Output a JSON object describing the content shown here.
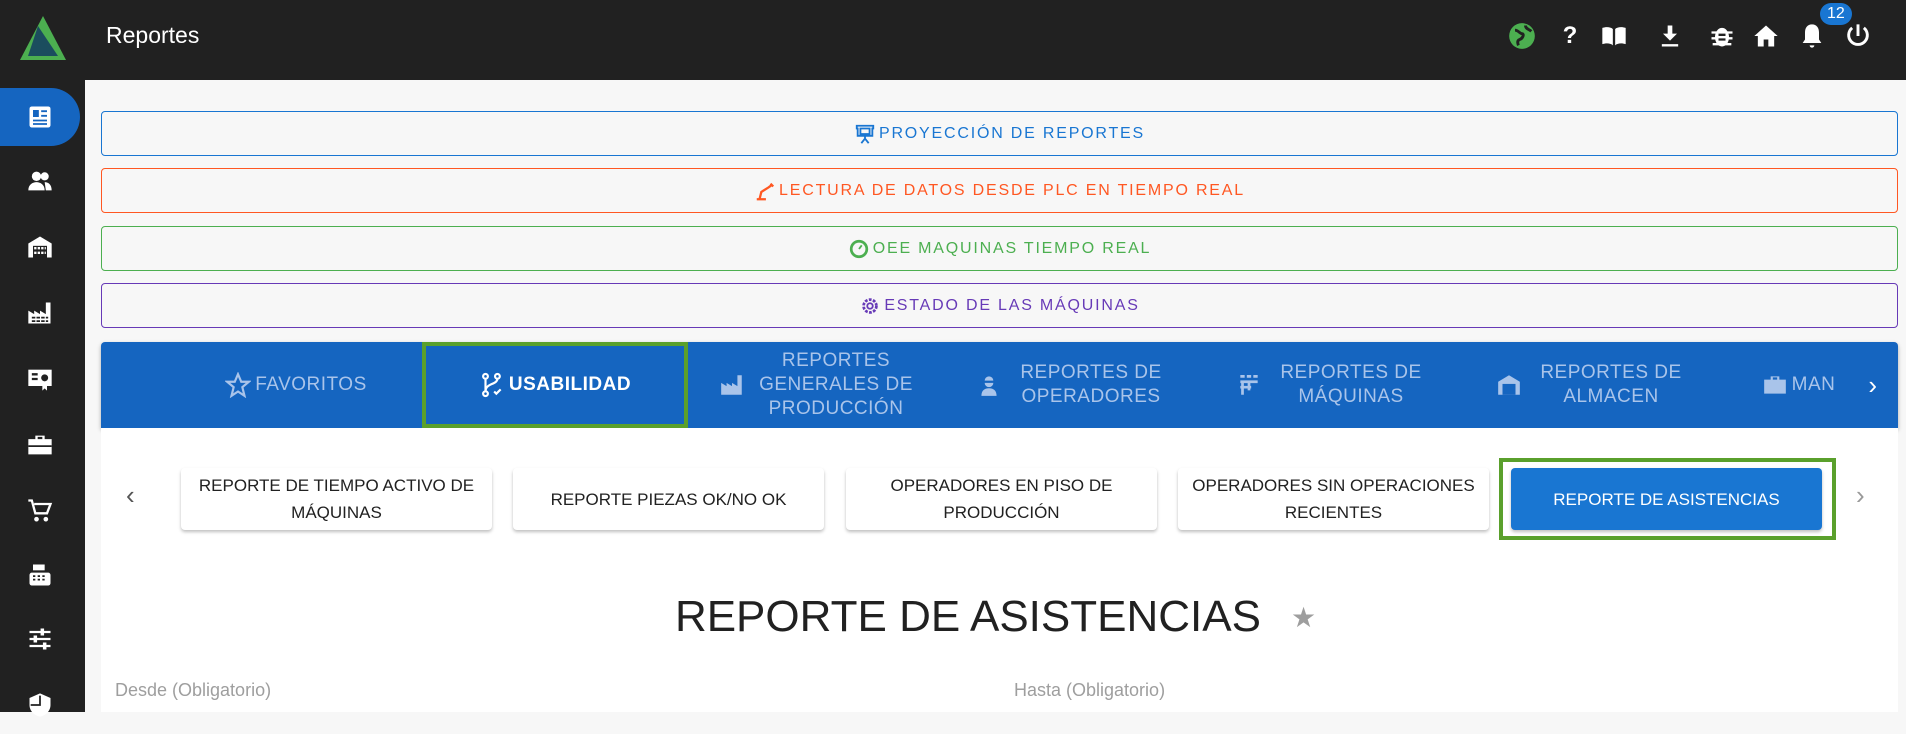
{
  "header": {
    "title": "Reportes",
    "notification_count": "12",
    "icons": [
      "globe-icon",
      "help-icon",
      "book-icon",
      "download-icon",
      "bug-icon",
      "home-icon",
      "bell-icon",
      "power-icon"
    ]
  },
  "sidebar": {
    "items": [
      "reports",
      "users",
      "warehouse",
      "factory",
      "certificate",
      "toolbox",
      "cart",
      "cash-register",
      "tune",
      "shield"
    ],
    "active": "reports"
  },
  "quick_buttons": [
    {
      "label": "PROYECCIÓN DE REPORTES",
      "color": "#1976d2",
      "icon": "presentation-icon"
    },
    {
      "label": "LECTURA DE DATOS DESDE PLC EN TIEMPO REAL",
      "color": "#ff5722",
      "icon": "robot-arm-icon"
    },
    {
      "label": "OEE MAQUINAS TIEMPO REAL",
      "color": "#4caf50",
      "icon": "gauge-icon"
    },
    {
      "label": "ESTADO DE LAS MÁQUINAS",
      "color": "#673ab7",
      "icon": "gear-icon"
    }
  ],
  "tabs": [
    {
      "label": "FAVORITOS"
    },
    {
      "label": "USABILIDAD",
      "active": true
    },
    {
      "label": "REPORTES GENERALES DE PRODUCCIÓN"
    },
    {
      "label": "REPORTES DE OPERADORES"
    },
    {
      "label": "REPORTES DE MÁQUINAS"
    },
    {
      "label": "REPORTES DE ALMACEN"
    },
    {
      "label": "MAN"
    }
  ],
  "reports": [
    {
      "label": "REPORTE DE TIEMPO ACTIVO DE MÁQUINAS"
    },
    {
      "label": "REPORTE PIEZAS OK/NO OK"
    },
    {
      "label": "OPERADORES EN PISO DE PRODUCCIÓN"
    },
    {
      "label": "OPERADORES SIN OPERACIONES RECIENTES"
    },
    {
      "label": "REPORTE DE ASISTENCIAS",
      "active": true
    }
  ],
  "main": {
    "title": "REPORTE DE ASISTENCIAS",
    "from_label": "Desde (Obligatorio)",
    "to_label": "Hasta (Obligatorio)"
  }
}
